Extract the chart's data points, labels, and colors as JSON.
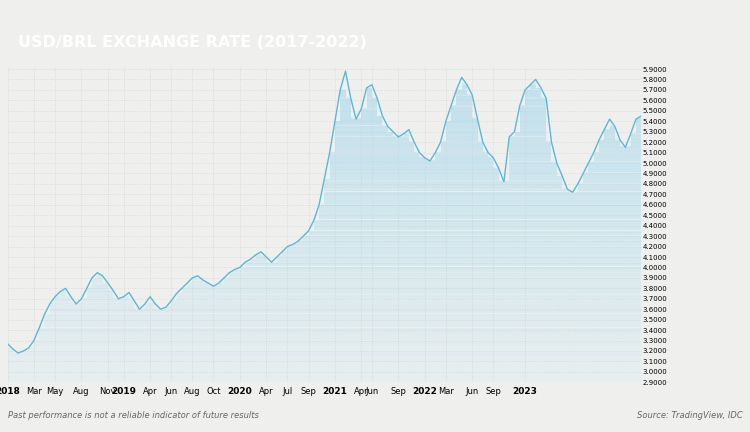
{
  "title": "USD/BRL EXCHANGE RATE (2017-2022)",
  "title_bg_color": "#9B7355",
  "title_text_color": "#FFFFFF",
  "bg_color": "#EFEFED",
  "chart_bg_color": "#EFEFED",
  "grid_color": "#CCCCCC",
  "line_color": "#5BB8D4",
  "fill_color_top": "#A8D8EA",
  "fill_color_bottom": "#E8F5FA",
  "footnote": "Past performance is not a reliable indicator of future results",
  "source": "Source: TradingView, IDC",
  "ylim_min": 2.9,
  "ylim_max": 5.9,
  "x_tick_labels": [
    "2018",
    "Mar",
    "May",
    "Aug",
    "Nov",
    "2019",
    "Apr",
    "Jun",
    "Aug",
    "Oct",
    "2020",
    "Apr",
    "Jul",
    "Sep",
    "2021",
    "Apr",
    "Jun",
    "Sep",
    "2022",
    "Mar",
    "Jun",
    "Sep",
    "2023"
  ],
  "year_labels": [
    "2018",
    "2019",
    "2020",
    "2021",
    "2022",
    "2023"
  ],
  "data_x": [
    0,
    1,
    2,
    3,
    4,
    5,
    6,
    7,
    8,
    9,
    10,
    11,
    12,
    13,
    14,
    15,
    16,
    17,
    18,
    19,
    20,
    21,
    22,
    23,
    24,
    25,
    26,
    27,
    28,
    29,
    30,
    31,
    32,
    33,
    34,
    35,
    36,
    37,
    38,
    39,
    40,
    41,
    42,
    43,
    44,
    45,
    46,
    47,
    48,
    49,
    50,
    51,
    52,
    53,
    54,
    55,
    56,
    57,
    58,
    59,
    60,
    61,
    62,
    63,
    64,
    65,
    66,
    67,
    68,
    69,
    70,
    71,
    72,
    73,
    74,
    75,
    76,
    77,
    78,
    79,
    80,
    81,
    82,
    83,
    84,
    85,
    86,
    87,
    88,
    89,
    90,
    91,
    92,
    93,
    94,
    95,
    96,
    97,
    98,
    99,
    100,
    101,
    102,
    103,
    104,
    105,
    106,
    107,
    108,
    109,
    110,
    111,
    112,
    113,
    114,
    115,
    116,
    117,
    118,
    119,
    120
  ],
  "x_tick_positions": [
    0,
    5,
    9,
    14,
    19,
    22,
    27,
    31,
    35,
    39,
    44,
    49,
    53,
    57,
    62,
    67,
    69,
    74,
    79,
    83,
    88,
    92,
    98
  ],
  "data_y": [
    3.27,
    3.22,
    3.18,
    3.2,
    3.23,
    3.3,
    3.42,
    3.55,
    3.65,
    3.72,
    3.77,
    3.8,
    3.72,
    3.65,
    3.7,
    3.8,
    3.9,
    3.95,
    3.92,
    3.85,
    3.78,
    3.7,
    3.72,
    3.76,
    3.68,
    3.6,
    3.65,
    3.72,
    3.65,
    3.6,
    3.62,
    3.68,
    3.75,
    3.8,
    3.85,
    3.9,
    3.92,
    3.88,
    3.85,
    3.82,
    3.85,
    3.9,
    3.95,
    3.98,
    4.0,
    4.05,
    4.08,
    4.12,
    4.15,
    4.1,
    4.05,
    4.1,
    4.15,
    4.2,
    4.22,
    4.25,
    4.3,
    4.35,
    4.45,
    4.6,
    4.85,
    5.1,
    5.4,
    5.7,
    5.88,
    5.62,
    5.42,
    5.52,
    5.72,
    5.75,
    5.62,
    5.45,
    5.35,
    5.3,
    5.25,
    5.28,
    5.32,
    5.2,
    5.1,
    5.05,
    5.02,
    5.1,
    5.2,
    5.4,
    5.55,
    5.7,
    5.82,
    5.75,
    5.65,
    5.42,
    5.2,
    5.1,
    5.05,
    4.95,
    4.82,
    5.25,
    5.3,
    5.55,
    5.7,
    5.75,
    5.8,
    5.72,
    5.62,
    5.2,
    5.0,
    4.88,
    4.75,
    4.72,
    4.8,
    4.9,
    5.0,
    5.1,
    5.22,
    5.32,
    5.42,
    5.35,
    5.22,
    5.15,
    5.28,
    5.42,
    5.45
  ]
}
